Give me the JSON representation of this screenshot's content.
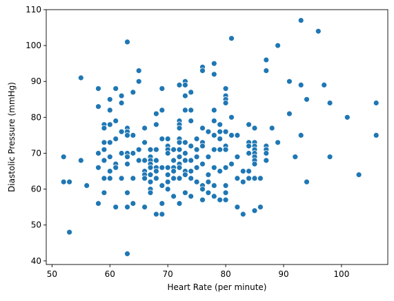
{
  "chart_data": {
    "type": "scatter",
    "xlabel": "Heart Rate (per minute)",
    "ylabel": "Diastolic Pressure (mmHg)",
    "xlim": [
      49,
      108
    ],
    "ylim": [
      39,
      110
    ],
    "xticks": [
      50,
      60,
      70,
      80,
      90,
      100
    ],
    "yticks": [
      40,
      50,
      60,
      70,
      80,
      90,
      100,
      110
    ],
    "grid": false,
    "marker_color": "#1f77b4",
    "points": [
      [
        52,
        69
      ],
      [
        52,
        62
      ],
      [
        53,
        62
      ],
      [
        53,
        48
      ],
      [
        55,
        91
      ],
      [
        55,
        68
      ],
      [
        56,
        61
      ],
      [
        58,
        88
      ],
      [
        58,
        83
      ],
      [
        58,
        70
      ],
      [
        58,
        66
      ],
      [
        58,
        56
      ],
      [
        59,
        78
      ],
      [
        59,
        77
      ],
      [
        59,
        73
      ],
      [
        59,
        71
      ],
      [
        59,
        68
      ],
      [
        59,
        63
      ],
      [
        59,
        59
      ],
      [
        60,
        85
      ],
      [
        60,
        82
      ],
      [
        60,
        78
      ],
      [
        60,
        73
      ],
      [
        60,
        69
      ],
      [
        60,
        65
      ],
      [
        60,
        63
      ],
      [
        61,
        88
      ],
      [
        61,
        79
      ],
      [
        61,
        74
      ],
      [
        61,
        67
      ],
      [
        61,
        66
      ],
      [
        61,
        55
      ],
      [
        62,
        86
      ],
      [
        62,
        84
      ],
      [
        62,
        76
      ],
      [
        62,
        70
      ],
      [
        62,
        63
      ],
      [
        63,
        101
      ],
      [
        63,
        77
      ],
      [
        63,
        76
      ],
      [
        63,
        75
      ],
      [
        63,
        70
      ],
      [
        63,
        69
      ],
      [
        63,
        67
      ],
      [
        63,
        59
      ],
      [
        63,
        55
      ],
      [
        63,
        42
      ],
      [
        64,
        87
      ],
      [
        64,
        75
      ],
      [
        64,
        70
      ],
      [
        64,
        63
      ],
      [
        64,
        56
      ],
      [
        65,
        93
      ],
      [
        65,
        90
      ],
      [
        65,
        71
      ],
      [
        65,
        68
      ],
      [
        66,
        77
      ],
      [
        66,
        73
      ],
      [
        66,
        68
      ],
      [
        66,
        65
      ],
      [
        66,
        64
      ],
      [
        66,
        63
      ],
      [
        66,
        55
      ],
      [
        67,
        71
      ],
      [
        67,
        69
      ],
      [
        67,
        68
      ],
      [
        67,
        67
      ],
      [
        67,
        66
      ],
      [
        67,
        64
      ],
      [
        67,
        62
      ],
      [
        67,
        60
      ],
      [
        67,
        59
      ],
      [
        68,
        81
      ],
      [
        68,
        78
      ],
      [
        68,
        71
      ],
      [
        68,
        68
      ],
      [
        68,
        66
      ],
      [
        68,
        65
      ],
      [
        68,
        63
      ],
      [
        68,
        53
      ],
      [
        69,
        88
      ],
      [
        69,
        82
      ],
      [
        69,
        74
      ],
      [
        69,
        66
      ],
      [
        69,
        61
      ],
      [
        69,
        56
      ],
      [
        69,
        53
      ],
      [
        70,
        74
      ],
      [
        70,
        72
      ],
      [
        70,
        71
      ],
      [
        70,
        70
      ],
      [
        70,
        66
      ],
      [
        70,
        64
      ],
      [
        70,
        62
      ],
      [
        70,
        60
      ],
      [
        71,
        71
      ],
      [
        71,
        68
      ],
      [
        71,
        66
      ],
      [
        71,
        65
      ],
      [
        71,
        63
      ],
      [
        71,
        58
      ],
      [
        72,
        89
      ],
      [
        72,
        79
      ],
      [
        72,
        78
      ],
      [
        72,
        77
      ],
      [
        72,
        74
      ],
      [
        72,
        73
      ],
      [
        72,
        71
      ],
      [
        72,
        69
      ],
      [
        72,
        67
      ],
      [
        72,
        66
      ],
      [
        72,
        63
      ],
      [
        72,
        56
      ],
      [
        73,
        90
      ],
      [
        73,
        89
      ],
      [
        73,
        86
      ],
      [
        73,
        82
      ],
      [
        73,
        73
      ],
      [
        73,
        70
      ],
      [
        73,
        68
      ],
      [
        73,
        65
      ],
      [
        73,
        64
      ],
      [
        73,
        59
      ],
      [
        74,
        87
      ],
      [
        74,
        82
      ],
      [
        74,
        79
      ],
      [
        74,
        72
      ],
      [
        74,
        68
      ],
      [
        74,
        65
      ],
      [
        74,
        63
      ],
      [
        74,
        58
      ],
      [
        75,
        74
      ],
      [
        75,
        71
      ],
      [
        75,
        69
      ],
      [
        75,
        66
      ],
      [
        75,
        62
      ],
      [
        76,
        94
      ],
      [
        76,
        93
      ],
      [
        76,
        77
      ],
      [
        76,
        73
      ],
      [
        76,
        72
      ],
      [
        76,
        67
      ],
      [
        76,
        61
      ],
      [
        76,
        60
      ],
      [
        76,
        57
      ],
      [
        77,
        76
      ],
      [
        77,
        69
      ],
      [
        77,
        64
      ],
      [
        77,
        62
      ],
      [
        77,
        59
      ],
      [
        78,
        95
      ],
      [
        78,
        92
      ],
      [
        78,
        82
      ],
      [
        78,
        79
      ],
      [
        78,
        75
      ],
      [
        78,
        71
      ],
      [
        78,
        66
      ],
      [
        78,
        61
      ],
      [
        78,
        58
      ],
      [
        79,
        78
      ],
      [
        79,
        76
      ],
      [
        79,
        74
      ],
      [
        79,
        71
      ],
      [
        79,
        65
      ],
      [
        79,
        57
      ],
      [
        80,
        88
      ],
      [
        80,
        86
      ],
      [
        80,
        85
      ],
      [
        80,
        84
      ],
      [
        80,
        76
      ],
      [
        80,
        72
      ],
      [
        80,
        71
      ],
      [
        80,
        66
      ],
      [
        80,
        61
      ],
      [
        80,
        59
      ],
      [
        80,
        57
      ],
      [
        81,
        102
      ],
      [
        81,
        80
      ],
      [
        81,
        75
      ],
      [
        81,
        67
      ],
      [
        82,
        75
      ],
      [
        82,
        69
      ],
      [
        82,
        63
      ],
      [
        82,
        55
      ],
      [
        83,
        65
      ],
      [
        83,
        62
      ],
      [
        83,
        53
      ],
      [
        84,
        78
      ],
      [
        84,
        73
      ],
      [
        84,
        72
      ],
      [
        84,
        70
      ],
      [
        84,
        65
      ],
      [
        84,
        63
      ],
      [
        85,
        77
      ],
      [
        85,
        73
      ],
      [
        85,
        72
      ],
      [
        85,
        71
      ],
      [
        85,
        70
      ],
      [
        85,
        69
      ],
      [
        85,
        68
      ],
      [
        85,
        67
      ],
      [
        85,
        63
      ],
      [
        85,
        54
      ],
      [
        86,
        63
      ],
      [
        86,
        55
      ],
      [
        87,
        96
      ],
      [
        87,
        93
      ],
      [
        87,
        72
      ],
      [
        87,
        71
      ],
      [
        87,
        70
      ],
      [
        87,
        68
      ],
      [
        88,
        77
      ],
      [
        89,
        100
      ],
      [
        89,
        73
      ],
      [
        91,
        90
      ],
      [
        91,
        81
      ],
      [
        92,
        69
      ],
      [
        93,
        107
      ],
      [
        93,
        89
      ],
      [
        93,
        75
      ],
      [
        94,
        85
      ],
      [
        94,
        62
      ],
      [
        96,
        104
      ],
      [
        97,
        89
      ],
      [
        98,
        84
      ],
      [
        98,
        69
      ],
      [
        101,
        80
      ],
      [
        103,
        64
      ],
      [
        106,
        84
      ],
      [
        106,
        75
      ]
    ]
  }
}
